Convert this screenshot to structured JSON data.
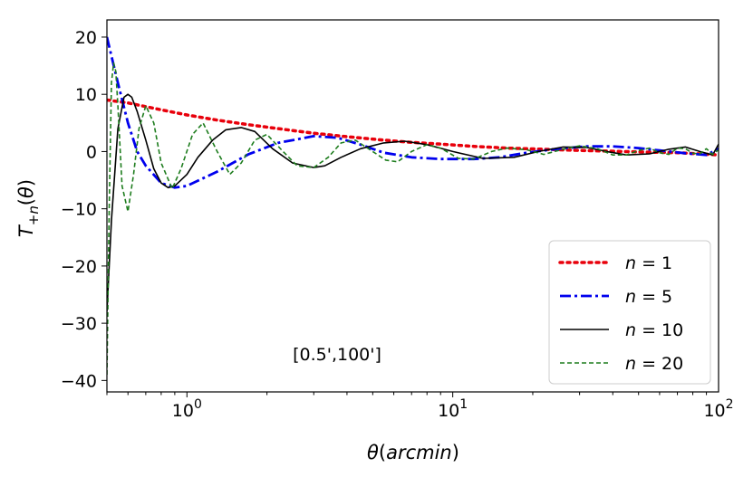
{
  "chart_data": {
    "type": "line",
    "xscale": "log",
    "xlim": [
      0.5,
      100
    ],
    "ylim": [
      -42,
      23
    ],
    "xlabel": "θ(arcmin)",
    "ylabel": "T₊ₙ(θ)",
    "annotation": "[0.5',100']",
    "x_ticks": [
      {
        "value": 1,
        "base": "10",
        "exp": "0"
      },
      {
        "value": 10,
        "base": "10",
        "exp": "1"
      },
      {
        "value": 100,
        "base": "10",
        "exp": "2"
      }
    ],
    "y_ticks": [
      {
        "value": 20,
        "label": "20"
      },
      {
        "value": 10,
        "label": "10"
      },
      {
        "value": 0,
        "label": "0"
      },
      {
        "value": -10,
        "label": "−10"
      },
      {
        "value": -20,
        "label": "−20"
      },
      {
        "value": -30,
        "label": "−30"
      },
      {
        "value": -40,
        "label": "−40"
      }
    ],
    "legend_position": "lower-right",
    "series": [
      {
        "name": "n = 1",
        "n": "1",
        "color": "#e8000b",
        "style": "dotted",
        "x": [
          0.5,
          0.6,
          0.8,
          1.0,
          1.3,
          1.7,
          2.2,
          3.0,
          4.0,
          5.5,
          7.0,
          9.0,
          12,
          16,
          22,
          30,
          40,
          55,
          70,
          85,
          100
        ],
        "y": [
          9.0,
          8.5,
          7.3,
          6.4,
          5.5,
          4.7,
          4.0,
          3.2,
          2.6,
          2.0,
          1.6,
          1.3,
          0.9,
          0.6,
          0.4,
          0.2,
          0.05,
          -0.1,
          -0.2,
          -0.4,
          -0.6
        ]
      },
      {
        "name": "n = 5",
        "n": "5",
        "color": "#0000ee",
        "style": "dashdot",
        "x": [
          0.5,
          0.55,
          0.6,
          0.65,
          0.7,
          0.8,
          0.9,
          1.0,
          1.3,
          1.7,
          2.2,
          3.0,
          3.7,
          4.5,
          5.5,
          7.0,
          9.0,
          12,
          15,
          19,
          25,
          32,
          40,
          50,
          60,
          75,
          90,
          100
        ],
        "y": [
          20,
          12,
          5,
          0,
          -2.5,
          -5.5,
          -6.3,
          -6.0,
          -3.5,
          -0.5,
          1.5,
          2.7,
          2.4,
          1.2,
          -0.2,
          -1.0,
          -1.3,
          -1.3,
          -1.0,
          -0.2,
          0.5,
          0.9,
          0.9,
          0.6,
          0.2,
          -0.3,
          -0.6,
          0.5
        ]
      },
      {
        "name": "n = 10",
        "n": "10",
        "color": "#000000",
        "style": "solid",
        "x": [
          0.5,
          0.52,
          0.55,
          0.58,
          0.6,
          0.62,
          0.65,
          0.7,
          0.75,
          0.8,
          0.85,
          0.9,
          1.0,
          1.1,
          1.25,
          1.4,
          1.6,
          1.8,
          2.1,
          2.5,
          3.0,
          3.3,
          3.8,
          4.5,
          5.5,
          6.6,
          8.0,
          10,
          13,
          17,
          21,
          26,
          32,
          38,
          45,
          55,
          65,
          75,
          85,
          95,
          100
        ],
        "y": [
          -28,
          -12,
          4,
          9.5,
          10,
          9.5,
          7,
          2,
          -3,
          -5.5,
          -6.3,
          -6,
          -4,
          -1,
          2,
          3.8,
          4.2,
          3.5,
          0.5,
          -2,
          -2.8,
          -2.5,
          -1,
          0.5,
          1.5,
          1.8,
          1.2,
          0,
          -1.2,
          -1,
          0,
          0.8,
          0.7,
          0,
          -0.6,
          -0.4,
          0.4,
          0.8,
          0,
          -0.6,
          1.3
        ]
      },
      {
        "name": "n = 20",
        "n": "20",
        "color": "#1e7d1e",
        "style": "dashed",
        "x": [
          0.5,
          0.51,
          0.52,
          0.53,
          0.54,
          0.55,
          0.57,
          0.6,
          0.63,
          0.66,
          0.7,
          0.75,
          0.8,
          0.88,
          0.95,
          1.05,
          1.15,
          1.3,
          1.45,
          1.6,
          1.8,
          2.0,
          2.3,
          2.6,
          3.0,
          3.4,
          3.8,
          4.3,
          5.0,
          5.6,
          6.2,
          7.0,
          8.0,
          9.0,
          10.5,
          12,
          14,
          16,
          19,
          22,
          26,
          30,
          35,
          40,
          45,
          50,
          55,
          60,
          65,
          70,
          75,
          80,
          85,
          90,
          95,
          100
        ],
        "y": [
          -39,
          -10,
          12,
          15.5,
          14,
          8,
          -6,
          -10.5,
          -4,
          4,
          8,
          5,
          -2,
          -6.5,
          -3,
          3,
          5,
          0,
          -4,
          -2,
          2,
          3,
          0,
          -2.5,
          -2.8,
          -1,
          1.5,
          2,
          0,
          -1.5,
          -1.8,
          0,
          1.2,
          0.6,
          -1.2,
          -1.3,
          0,
          0.6,
          0.3,
          -0.5,
          0.4,
          1,
          0.5,
          -0.6,
          -0.6,
          0.2,
          0.6,
          -0.2,
          -0.5,
          0.6,
          0.5,
          -0.3,
          -0.4,
          0.5,
          -0.5,
          0.3
        ]
      }
    ]
  }
}
